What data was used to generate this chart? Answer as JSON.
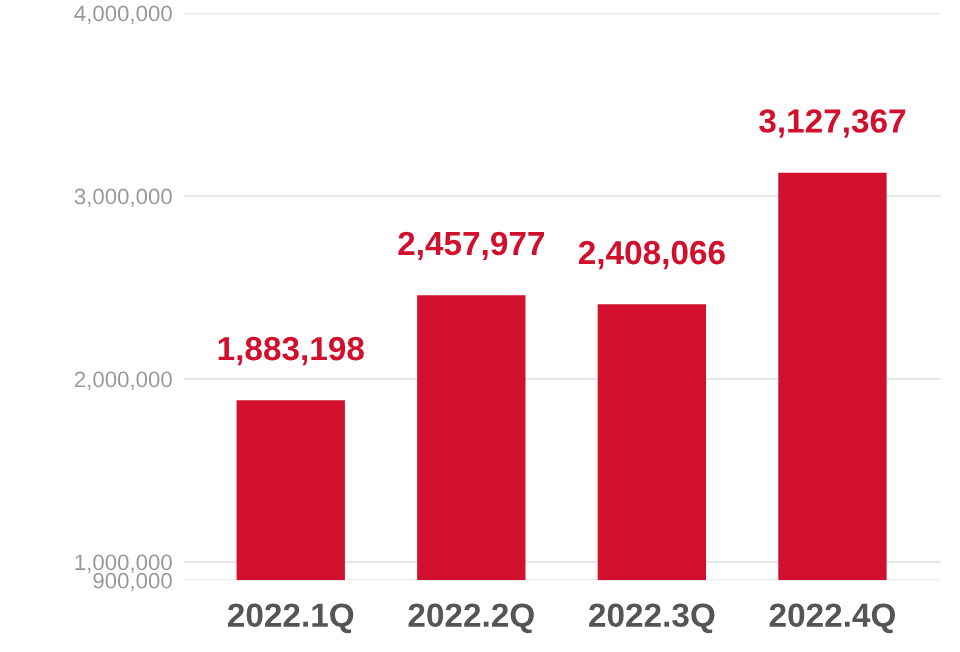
{
  "chart_data": {
    "type": "bar",
    "categories": [
      "2022.1Q",
      "2022.2Q",
      "2022.3Q",
      "2022.4Q"
    ],
    "values": [
      1883198,
      2457977,
      2408066,
      3127367
    ],
    "value_labels": [
      "1,883,198",
      "2,457,977",
      "2,408,066",
      "3,127,367"
    ],
    "color": "#d0102c",
    "ylim": [
      900000,
      4000000
    ],
    "yticks": [
      {
        "value": 900000,
        "label": "900,000"
      },
      {
        "value": 1000000,
        "label": "1,000,000"
      },
      {
        "value": 2000000,
        "label": "2,000,000"
      },
      {
        "value": 3000000,
        "label": "3,000,000"
      },
      {
        "value": 4000000,
        "label": "4,000,000"
      }
    ],
    "grid": "y"
  }
}
